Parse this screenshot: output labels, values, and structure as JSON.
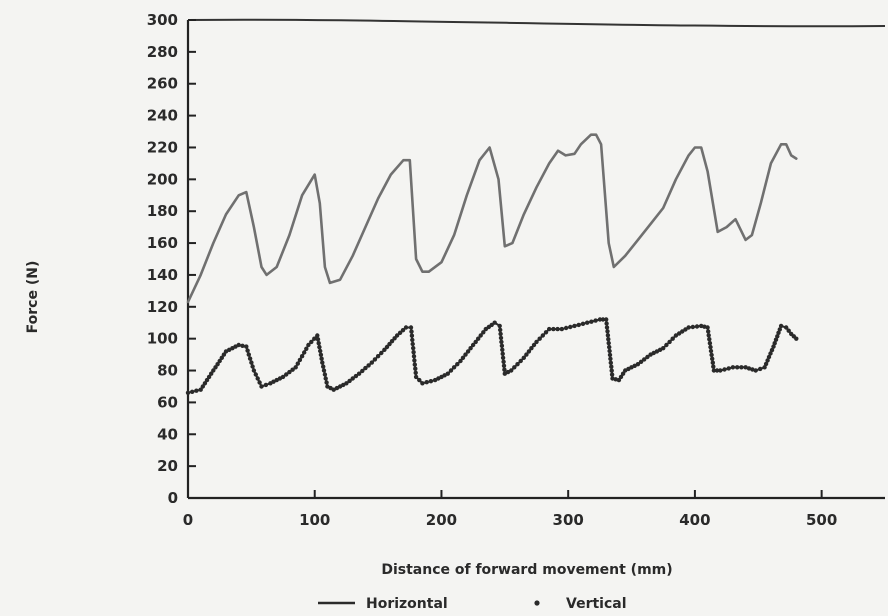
{
  "chart_data": {
    "type": "line",
    "title": "",
    "xlabel": "Distance of forward movement (mm)",
    "ylabel": "Force (N)",
    "xlim": [
      0,
      550
    ],
    "ylim": [
      0,
      300
    ],
    "xticks": [
      0,
      100,
      200,
      300,
      400,
      500
    ],
    "yticks": [
      0,
      20,
      40,
      60,
      80,
      100,
      120,
      140,
      160,
      180,
      200,
      220,
      240,
      260,
      280,
      300
    ],
    "grid": false,
    "legend_position": "bottom",
    "series": [
      {
        "name": "Horizontal",
        "style": "line",
        "color": "#707070",
        "x": [
          0,
          10,
          20,
          30,
          40,
          46,
          52,
          58,
          62,
          70,
          80,
          90,
          100,
          104,
          108,
          112,
          120,
          130,
          140,
          150,
          160,
          170,
          175,
          180,
          185,
          190,
          200,
          210,
          220,
          230,
          238,
          245,
          250,
          256,
          265,
          275,
          285,
          292,
          298,
          305,
          310,
          318,
          322,
          326,
          332,
          336,
          345,
          355,
          365,
          375,
          385,
          395,
          400,
          405,
          410,
          418,
          425,
          432,
          440,
          445,
          452,
          460,
          468,
          472,
          476,
          480
        ],
        "y": [
          123,
          140,
          160,
          178,
          190,
          192,
          170,
          145,
          140,
          145,
          165,
          190,
          203,
          185,
          145,
          135,
          137,
          152,
          170,
          188,
          203,
          212,
          212,
          150,
          142,
          142,
          148,
          165,
          190,
          212,
          220,
          200,
          158,
          160,
          178,
          195,
          210,
          218,
          215,
          216,
          222,
          228,
          228,
          222,
          160,
          145,
          152,
          162,
          172,
          182,
          200,
          215,
          220,
          220,
          205,
          167,
          170,
          175,
          162,
          165,
          185,
          210,
          222,
          222,
          215,
          213
        ]
      },
      {
        "name": "Vertical",
        "style": "markers",
        "color": "#2a2a2a",
        "x": [
          0,
          10,
          20,
          30,
          40,
          46,
          52,
          58,
          65,
          75,
          85,
          95,
          102,
          106,
          110,
          115,
          125,
          135,
          145,
          155,
          165,
          172,
          176,
          180,
          185,
          195,
          205,
          215,
          225,
          235,
          242,
          246,
          250,
          255,
          265,
          275,
          285,
          295,
          305,
          315,
          325,
          330,
          335,
          340,
          345,
          355,
          365,
          375,
          385,
          395,
          405,
          410,
          415,
          420,
          430,
          440,
          448,
          455,
          462,
          468,
          472,
          476,
          480
        ],
        "y": [
          66,
          68,
          80,
          92,
          96,
          95,
          80,
          70,
          72,
          76,
          82,
          96,
          102,
          85,
          70,
          68,
          72,
          78,
          85,
          93,
          102,
          107,
          107,
          76,
          72,
          74,
          78,
          86,
          96,
          106,
          110,
          108,
          78,
          80,
          88,
          98,
          106,
          106,
          108,
          110,
          112,
          112,
          75,
          74,
          80,
          84,
          90,
          94,
          102,
          107,
          108,
          107,
          80,
          80,
          82,
          82,
          80,
          82,
          95,
          108,
          107,
          103,
          100
        ]
      }
    ]
  }
}
